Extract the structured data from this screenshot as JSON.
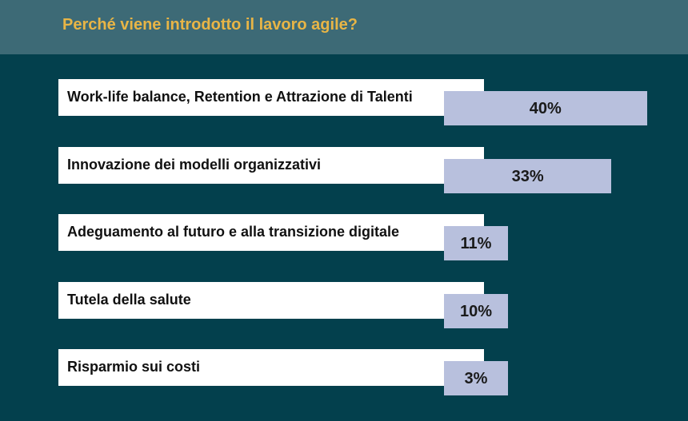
{
  "header": {
    "title": "Perché viene introdotto il lavoro agile?"
  },
  "colors": {
    "background": "#03404d",
    "header": "#3d6a76",
    "title": "#e8b546",
    "bar": "#b8c0dd"
  },
  "chart_data": {
    "type": "bar",
    "orientation": "horizontal",
    "title": "Perché viene introdotto il lavoro agile?",
    "categories": [
      "Work-life balance, Retention e Attrazione di Talenti",
      "Innovazione dei modelli organizzativi",
      "Adeguamento al futuro e alla transizione digitale",
      "Tutela della salute",
      "Risparmio sui costi"
    ],
    "values": [
      40,
      33,
      11,
      10,
      3
    ],
    "value_labels": [
      "40%",
      "33%",
      "11%",
      "10%",
      "3%"
    ],
    "unit": "%"
  }
}
